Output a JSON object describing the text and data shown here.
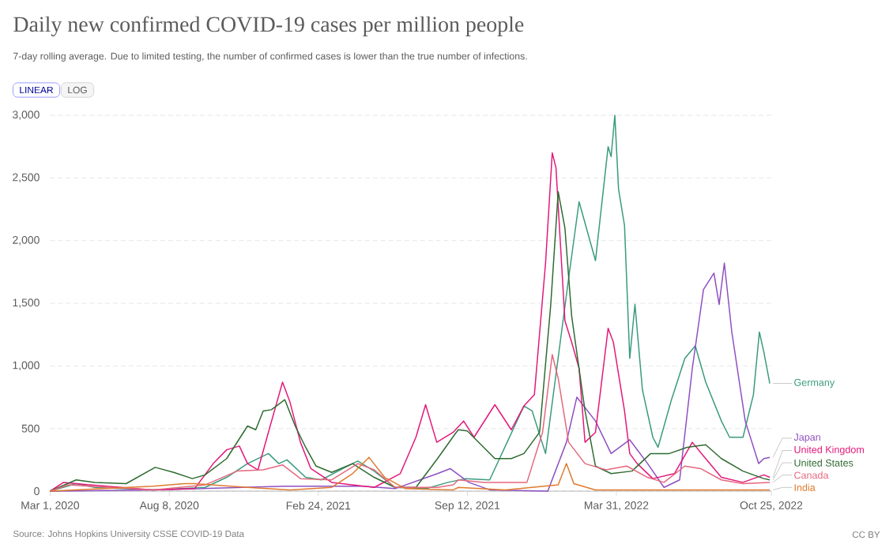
{
  "chart_data": {
    "type": "line",
    "title": "Daily new confirmed COVID-19 cases per million people",
    "subtitle": "7-day rolling average. Due to limited testing, the number of confirmed cases is lower than the true number of infections.",
    "annotations": [
      "LINEAR",
      "LOG",
      "Source: Johns Hopkins University CSSE COVID-19 Data",
      "CC BY"
    ],
    "xlim": [
      "2020-03-01",
      "2022-10-25"
    ],
    "xticks": [
      {
        "value": "2020-03-01",
        "label": "Mar 1, 2020"
      },
      {
        "value": "2020-08-08",
        "label": "Aug 8, 2020"
      },
      {
        "value": "2021-02-24",
        "label": "Feb 24, 2021"
      },
      {
        "value": "2021-09-12",
        "label": "Sep 12, 2021"
      },
      {
        "value": "2022-03-31",
        "label": "Mar 31, 2022"
      },
      {
        "value": "2022-10-25",
        "label": "Oct 25, 2022"
      }
    ],
    "ylim": [
      0,
      3000
    ],
    "yticks": [
      0,
      500,
      {
        "value": 1000,
        "label": "1,000"
      },
      {
        "value": 1500,
        "label": "1,500"
      },
      {
        "value": 2000,
        "label": "2,000"
      },
      {
        "value": 2500,
        "label": "2,500"
      },
      {
        "value": 3000,
        "label": "3,000"
      }
    ],
    "grid": "y",
    "legend": "right",
    "series": [
      {
        "name": "Germany",
        "color": "#3a9b7e",
        "x": [
          "2020-03-01",
          "2020-04-05",
          "2020-04-30",
          "2020-07-17",
          "2020-09-25",
          "2020-10-24",
          "2020-11-21",
          "2020-12-19",
          "2021-01-02",
          "2021-01-13",
          "2021-02-07",
          "2021-02-28",
          "2021-04-01",
          "2021-04-18",
          "2021-05-10",
          "2021-06-07",
          "2021-07-19",
          "2021-08-17",
          "2021-09-10",
          "2021-10-12",
          "2021-11-27",
          "2021-12-08",
          "2021-12-26",
          "2022-01-26",
          "2022-02-09",
          "2022-03-03",
          "2022-03-20",
          "2022-03-24",
          "2022-03-29",
          "2022-04-03",
          "2022-04-11",
          "2022-04-18",
          "2022-04-25",
          "2022-05-05",
          "2022-05-19",
          "2022-05-26",
          "2022-06-13",
          "2022-07-01",
          "2022-07-15",
          "2022-07-29",
          "2022-08-19",
          "2022-08-30",
          "2022-09-17",
          "2022-10-01",
          "2022-10-09",
          "2022-10-15",
          "2022-10-23"
        ],
        "values": [
          0,
          60,
          30,
          10,
          30,
          110,
          220,
          300,
          220,
          250,
          110,
          90,
          190,
          240,
          160,
          30,
          20,
          70,
          100,
          90,
          680,
          640,
          300,
          1700,
          2310,
          1840,
          2750,
          2670,
          3000,
          2410,
          2120,
          1060,
          1490,
          810,
          430,
          350,
          730,
          1060,
          1160,
          870,
          560,
          430,
          430,
          770,
          1270,
          1110,
          860
        ]
      },
      {
        "name": "Japan",
        "color": "#8e4fc1",
        "x": [
          "2020-03-01",
          "2020-07-17",
          "2021-01-10",
          "2021-04-25",
          "2021-06-07",
          "2021-08-03",
          "2021-08-20",
          "2021-09-14",
          "2021-10-12",
          "2021-12-29",
          "2022-01-23",
          "2022-02-06",
          "2022-03-03",
          "2022-03-24",
          "2022-04-18",
          "2022-05-12",
          "2022-06-03",
          "2022-06-24",
          "2022-07-11",
          "2022-07-26",
          "2022-08-09",
          "2022-08-16",
          "2022-08-23",
          "2022-09-02",
          "2022-09-20",
          "2022-10-08",
          "2022-10-15",
          "2022-10-23"
        ],
        "values": [
          0,
          10,
          40,
          40,
          20,
          140,
          180,
          70,
          10,
          0,
          390,
          750,
          560,
          300,
          410,
          220,
          30,
          90,
          980,
          1610,
          1740,
          1490,
          1820,
          1270,
          560,
          220,
          260,
          270
        ]
      },
      {
        "name": "United Kingdom",
        "color": "#e3197a",
        "x": [
          "2020-03-01",
          "2020-03-19",
          "2020-04-23",
          "2020-07-17",
          "2020-09-11",
          "2020-10-06",
          "2020-10-24",
          "2020-11-10",
          "2020-11-21",
          "2020-12-05",
          "2020-12-19",
          "2021-01-07",
          "2021-01-17",
          "2021-01-31",
          "2021-02-14",
          "2021-03-14",
          "2021-05-10",
          "2021-06-14",
          "2021-07-05",
          "2021-07-18",
          "2021-08-02",
          "2021-08-24",
          "2021-09-07",
          "2021-09-21",
          "2021-10-19",
          "2021-11-10",
          "2021-11-27",
          "2021-12-11",
          "2021-12-26",
          "2022-01-04",
          "2022-01-09",
          "2022-01-21",
          "2022-01-30",
          "2022-02-09",
          "2022-02-17",
          "2022-03-03",
          "2022-03-20",
          "2022-03-27",
          "2022-04-11",
          "2022-04-18",
          "2022-04-28",
          "2022-05-19",
          "2022-06-17",
          "2022-07-11",
          "2022-07-26",
          "2022-08-19",
          "2022-09-17",
          "2022-10-15",
          "2022-10-23"
        ],
        "values": [
          0,
          70,
          50,
          10,
          20,
          220,
          330,
          360,
          220,
          170,
          470,
          870,
          710,
          390,
          180,
          70,
          30,
          140,
          430,
          690,
          390,
          470,
          560,
          430,
          690,
          490,
          680,
          770,
          1820,
          2700,
          2580,
          1360,
          1190,
          980,
          390,
          470,
          1300,
          1190,
          640,
          300,
          220,
          100,
          140,
          390,
          280,
          110,
          70,
          130,
          110
        ]
      },
      {
        "name": "United States",
        "color": "#2e6b31",
        "x": [
          "2020-03-01",
          "2020-04-05",
          "2020-04-30",
          "2020-06-11",
          "2020-07-20",
          "2020-08-14",
          "2020-09-08",
          "2020-09-25",
          "2020-10-24",
          "2020-11-21",
          "2020-12-02",
          "2020-12-12",
          "2020-12-23",
          "2021-01-10",
          "2021-01-24",
          "2021-02-07",
          "2021-02-21",
          "2021-03-14",
          "2021-04-11",
          "2021-05-10",
          "2021-06-07",
          "2021-07-05",
          "2021-08-03",
          "2021-08-27",
          "2021-08-31",
          "2021-09-12",
          "2021-10-19",
          "2021-11-10",
          "2021-11-27",
          "2021-12-18",
          "2022-01-02",
          "2022-01-12",
          "2022-01-21",
          "2022-01-30",
          "2022-02-17",
          "2022-03-03",
          "2022-03-24",
          "2022-04-21",
          "2022-05-16",
          "2022-06-10",
          "2022-07-04",
          "2022-07-29",
          "2022-08-19",
          "2022-09-17",
          "2022-10-15",
          "2022-10-23"
        ],
        "values": [
          0,
          90,
          70,
          60,
          190,
          150,
          100,
          130,
          260,
          520,
          490,
          640,
          650,
          730,
          520,
          350,
          200,
          150,
          220,
          110,
          30,
          30,
          260,
          460,
          490,
          480,
          260,
          260,
          300,
          470,
          1490,
          2390,
          2100,
          1400,
          640,
          200,
          140,
          160,
          300,
          300,
          350,
          370,
          260,
          160,
          100,
          90
        ]
      },
      {
        "name": "Canada",
        "color": "#e5687e",
        "x": [
          "2020-03-01",
          "2020-03-26",
          "2020-04-23",
          "2020-07-17",
          "2020-09-25",
          "2020-11-07",
          "2020-12-12",
          "2021-01-07",
          "2021-01-31",
          "2021-03-14",
          "2021-04-18",
          "2021-05-10",
          "2021-06-07",
          "2021-08-03",
          "2021-08-24",
          "2021-08-31",
          "2021-10-05",
          "2021-12-01",
          "2021-12-22",
          "2022-01-04",
          "2022-01-12",
          "2022-01-26",
          "2022-02-17",
          "2022-03-17",
          "2022-04-14",
          "2022-05-12",
          "2022-06-03",
          "2022-07-01",
          "2022-07-22",
          "2022-08-19",
          "2022-09-17",
          "2022-10-23"
        ],
        "values": [
          0,
          50,
          40,
          10,
          50,
          160,
          170,
          210,
          100,
          90,
          220,
          170,
          30,
          30,
          50,
          90,
          70,
          70,
          470,
          1090,
          900,
          390,
          220,
          170,
          200,
          110,
          70,
          200,
          180,
          90,
          60,
          70
        ]
      },
      {
        "name": "India",
        "color": "#e07a2e",
        "x": [
          "2020-03-01",
          "2020-07-17",
          "2020-08-28",
          "2020-09-11",
          "2020-11-21",
          "2021-01-17",
          "2021-03-14",
          "2021-04-11",
          "2021-05-03",
          "2021-05-24",
          "2021-06-21",
          "2021-08-24",
          "2021-08-31",
          "2021-11-02",
          "2022-01-12",
          "2022-01-23",
          "2022-02-02",
          "2022-03-03",
          "2022-10-23"
        ],
        "values": [
          0,
          40,
          60,
          60,
          30,
          10,
          30,
          140,
          270,
          110,
          20,
          10,
          30,
          10,
          50,
          220,
          60,
          10,
          10
        ]
      }
    ]
  }
}
